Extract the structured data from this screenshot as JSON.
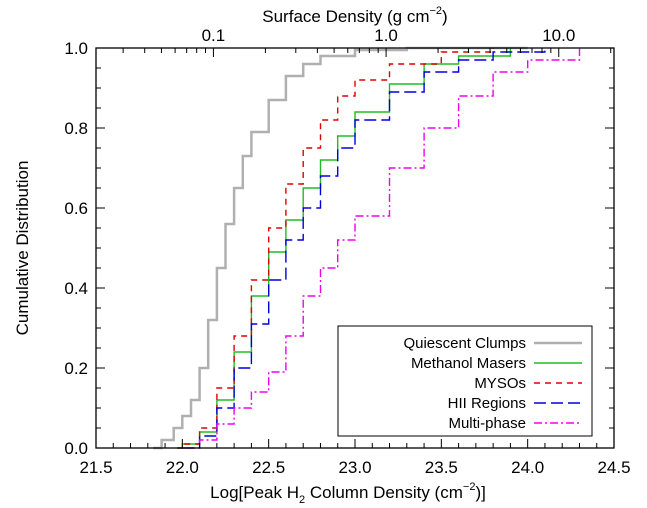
{
  "chart_data": {
    "type": "line",
    "xlabel_parts": {
      "pre": "Log[Peak H",
      "sub": "2",
      "mid": " Column Density (cm",
      "sup": "−2",
      "post": ")]"
    },
    "ylabel": "Cumulative Distribution",
    "top_xlabel_parts": {
      "pre": "Surface Density (g cm",
      "sup": "−2",
      "post": ")"
    },
    "xlim": [
      21.5,
      24.5
    ],
    "ylim": [
      0.0,
      1.0
    ],
    "xticks": [
      "21.5",
      "22.0",
      "22.5",
      "23.0",
      "23.5",
      "24.0",
      "24.5"
    ],
    "yticks": [
      "0.0",
      "0.2",
      "0.4",
      "0.6",
      "0.8",
      "1.0"
    ],
    "top_ticks": [
      {
        "label": "0.1",
        "logN": 22.18
      },
      {
        "label": "1.0",
        "logN": 23.18
      },
      {
        "label": "10.0",
        "logN": 24.18
      }
    ],
    "grid": false,
    "legend_position": "bottom-right",
    "series": [
      {
        "name": "Quiescent Clumps",
        "color": "#b0b0b0",
        "dash": "solid",
        "points": [
          [
            21.83,
            0.0
          ],
          [
            21.88,
            0.02
          ],
          [
            21.95,
            0.05
          ],
          [
            22.0,
            0.08
          ],
          [
            22.05,
            0.12
          ],
          [
            22.1,
            0.2
          ],
          [
            22.15,
            0.32
          ],
          [
            22.2,
            0.45
          ],
          [
            22.25,
            0.56
          ],
          [
            22.3,
            0.65
          ],
          [
            22.35,
            0.73
          ],
          [
            22.4,
            0.79
          ],
          [
            22.5,
            0.87
          ],
          [
            22.6,
            0.93
          ],
          [
            22.7,
            0.96
          ],
          [
            22.8,
            0.98
          ],
          [
            23.0,
            0.995
          ],
          [
            23.3,
            1.0
          ],
          [
            24.0,
            1.0
          ]
        ]
      },
      {
        "name": "Methanol Masers",
        "color": "#22bb22",
        "dash": "solid",
        "points": [
          [
            21.97,
            0.0
          ],
          [
            22.0,
            0.01
          ],
          [
            22.1,
            0.04
          ],
          [
            22.2,
            0.12
          ],
          [
            22.3,
            0.24
          ],
          [
            22.4,
            0.38
          ],
          [
            22.5,
            0.49
          ],
          [
            22.6,
            0.57
          ],
          [
            22.7,
            0.65
          ],
          [
            22.8,
            0.72
          ],
          [
            22.9,
            0.78
          ],
          [
            23.0,
            0.84
          ],
          [
            23.2,
            0.91
          ],
          [
            23.4,
            0.96
          ],
          [
            23.6,
            0.98
          ],
          [
            23.9,
            1.0
          ]
        ]
      },
      {
        "name": "MYSOs",
        "color": "#e00000",
        "dash": "6,5",
        "points": [
          [
            21.97,
            0.0
          ],
          [
            22.0,
            0.01
          ],
          [
            22.1,
            0.05
          ],
          [
            22.2,
            0.15
          ],
          [
            22.3,
            0.28
          ],
          [
            22.4,
            0.42
          ],
          [
            22.5,
            0.55
          ],
          [
            22.6,
            0.66
          ],
          [
            22.7,
            0.75
          ],
          [
            22.8,
            0.82
          ],
          [
            22.9,
            0.88
          ],
          [
            23.0,
            0.92
          ],
          [
            23.2,
            0.96
          ],
          [
            23.5,
            0.99
          ],
          [
            23.8,
            1.0
          ]
        ]
      },
      {
        "name": "HII Regions",
        "color": "#0000dd",
        "dash": "12,5",
        "points": [
          [
            22.0,
            0.0
          ],
          [
            22.1,
            0.03
          ],
          [
            22.2,
            0.1
          ],
          [
            22.3,
            0.2
          ],
          [
            22.4,
            0.31
          ],
          [
            22.5,
            0.42
          ],
          [
            22.6,
            0.52
          ],
          [
            22.7,
            0.6
          ],
          [
            22.8,
            0.68
          ],
          [
            22.9,
            0.75
          ],
          [
            23.0,
            0.82
          ],
          [
            23.2,
            0.89
          ],
          [
            23.4,
            0.94
          ],
          [
            23.6,
            0.97
          ],
          [
            23.8,
            0.99
          ],
          [
            24.1,
            1.0
          ]
        ]
      },
      {
        "name": "Multi-phase",
        "color": "#ee00ee",
        "dash": "8,3,2,3",
        "points": [
          [
            22.03,
            0.0
          ],
          [
            22.1,
            0.02
          ],
          [
            22.2,
            0.06
          ],
          [
            22.3,
            0.1
          ],
          [
            22.4,
            0.14
          ],
          [
            22.5,
            0.19
          ],
          [
            22.6,
            0.28
          ],
          [
            22.7,
            0.38
          ],
          [
            22.8,
            0.45
          ],
          [
            22.9,
            0.52
          ],
          [
            23.0,
            0.58
          ],
          [
            23.2,
            0.7
          ],
          [
            23.4,
            0.8
          ],
          [
            23.6,
            0.88
          ],
          [
            23.8,
            0.94
          ],
          [
            24.0,
            0.97
          ],
          [
            24.3,
            1.0
          ]
        ]
      }
    ]
  }
}
